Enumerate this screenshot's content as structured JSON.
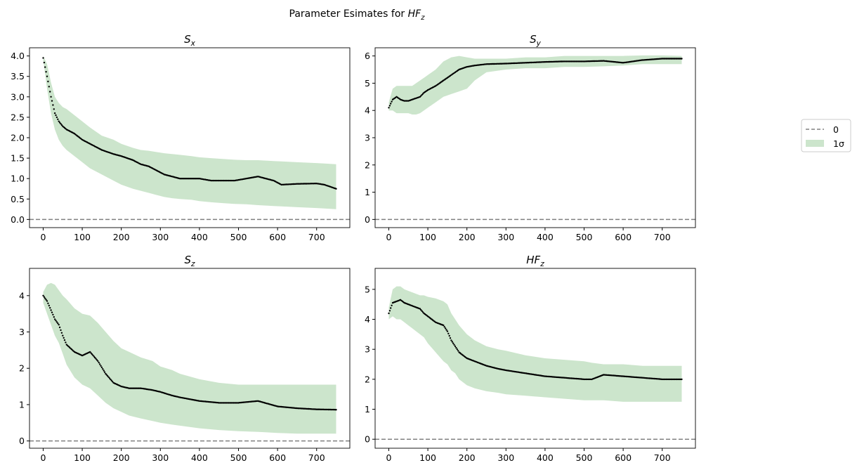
{
  "figure": {
    "suptitle_prefix": "Parameter Esimates for ",
    "suptitle_math": "HF",
    "suptitle_sub": "z"
  },
  "legend": {
    "items": [
      {
        "label": "0",
        "type": "dashed-line",
        "color": "#808080"
      },
      {
        "label": "1σ",
        "type": "band",
        "color": "#cce5cc"
      }
    ],
    "placement": "right, outside axes, vertically centered"
  },
  "colors": {
    "points": "#000000",
    "band": "#cce5cc",
    "zero_line": "#808080"
  },
  "chart_data": [
    {
      "type": "scatter",
      "title_main": "S",
      "title_sub": "x",
      "xlim": [
        -35,
        785
      ],
      "ylim": [
        -0.2,
        4.2
      ],
      "xticks": [
        0,
        100,
        200,
        300,
        400,
        500,
        600,
        700
      ],
      "yticks": [
        0.0,
        0.5,
        1.0,
        1.5,
        2.0,
        2.5,
        3.0,
        3.5,
        4.0
      ],
      "ytick_labels": [
        "0.0",
        "0.5",
        "1.0",
        "1.5",
        "2.0",
        "2.5",
        "3.0",
        "3.5",
        "4.0"
      ],
      "zero_line": 0,
      "x": [
        0,
        10,
        20,
        30,
        40,
        50,
        60,
        80,
        100,
        120,
        150,
        180,
        200,
        230,
        250,
        270,
        290,
        310,
        330,
        350,
        380,
        400,
        430,
        460,
        490,
        520,
        550,
        570,
        590,
        610,
        650,
        700,
        720,
        750
      ],
      "estimate": [
        3.95,
        3.5,
        3.0,
        2.6,
        2.4,
        2.28,
        2.2,
        2.1,
        1.95,
        1.85,
        1.7,
        1.6,
        1.55,
        1.45,
        1.35,
        1.3,
        1.2,
        1.1,
        1.05,
        1.0,
        1.0,
        1.0,
        0.95,
        0.95,
        0.95,
        1.0,
        1.05,
        1.0,
        0.95,
        0.85,
        0.87,
        0.88,
        0.85,
        0.75
      ],
      "lower": [
        3.9,
        3.2,
        2.6,
        2.2,
        1.95,
        1.8,
        1.7,
        1.55,
        1.4,
        1.25,
        1.1,
        0.95,
        0.85,
        0.75,
        0.7,
        0.65,
        0.6,
        0.55,
        0.52,
        0.5,
        0.48,
        0.45,
        0.42,
        0.4,
        0.38,
        0.37,
        0.35,
        0.34,
        0.33,
        0.32,
        0.3,
        0.28,
        0.27,
        0.25
      ],
      "upper": [
        4.0,
        3.8,
        3.35,
        3.0,
        2.85,
        2.75,
        2.7,
        2.55,
        2.4,
        2.25,
        2.05,
        1.95,
        1.85,
        1.75,
        1.7,
        1.68,
        1.65,
        1.62,
        1.6,
        1.58,
        1.55,
        1.52,
        1.5,
        1.48,
        1.46,
        1.45,
        1.45,
        1.44,
        1.43,
        1.42,
        1.4,
        1.38,
        1.37,
        1.35
      ]
    },
    {
      "type": "scatter",
      "title_main": "S",
      "title_sub": "y",
      "xlim": [
        -35,
        785
      ],
      "ylim": [
        -0.3,
        6.3
      ],
      "xticks": [
        0,
        100,
        200,
        300,
        400,
        500,
        600,
        700
      ],
      "yticks": [
        0,
        1,
        2,
        3,
        4,
        5,
        6
      ],
      "ytick_labels": [
        "0",
        "1",
        "2",
        "3",
        "4",
        "5",
        "6"
      ],
      "zero_line": 0,
      "x": [
        0,
        10,
        20,
        30,
        40,
        50,
        60,
        70,
        80,
        90,
        100,
        120,
        140,
        160,
        180,
        200,
        220,
        250,
        300,
        350,
        400,
        450,
        500,
        550,
        600,
        650,
        700,
        750
      ],
      "estimate": [
        4.1,
        4.4,
        4.5,
        4.4,
        4.35,
        4.35,
        4.4,
        4.45,
        4.5,
        4.65,
        4.75,
        4.9,
        5.1,
        5.3,
        5.5,
        5.6,
        5.65,
        5.7,
        5.72,
        5.75,
        5.78,
        5.8,
        5.8,
        5.82,
        5.75,
        5.85,
        5.9,
        5.9
      ],
      "lower": [
        4.0,
        4.0,
        3.9,
        3.9,
        3.9,
        3.9,
        3.85,
        3.85,
        3.9,
        4.0,
        4.1,
        4.3,
        4.5,
        4.6,
        4.7,
        4.8,
        5.1,
        5.4,
        5.5,
        5.55,
        5.55,
        5.6,
        5.6,
        5.62,
        5.65,
        5.7,
        5.7,
        5.7
      ],
      "upper": [
        4.3,
        4.8,
        4.9,
        4.9,
        4.9,
        4.9,
        4.9,
        5.0,
        5.1,
        5.2,
        5.3,
        5.5,
        5.8,
        5.95,
        6.0,
        5.95,
        5.9,
        5.9,
        5.9,
        5.95,
        5.95,
        6.0,
        6.0,
        6.0,
        6.0,
        6.02,
        6.02,
        6.0
      ]
    },
    {
      "type": "scatter",
      "title_main": "S",
      "title_sub": "z",
      "xlim": [
        -35,
        785
      ],
      "ylim": [
        -0.2,
        4.75
      ],
      "xticks": [
        0,
        100,
        200,
        300,
        400,
        500,
        600,
        700
      ],
      "yticks": [
        0,
        1,
        2,
        3,
        4
      ],
      "ytick_labels": [
        "0",
        "1",
        "2",
        "3",
        "4"
      ],
      "zero_line": 0,
      "x": [
        0,
        10,
        20,
        30,
        40,
        50,
        60,
        80,
        100,
        120,
        140,
        160,
        180,
        200,
        220,
        250,
        280,
        300,
        330,
        350,
        400,
        450,
        500,
        550,
        600,
        650,
        700,
        750
      ],
      "estimate": [
        4.0,
        3.85,
        3.6,
        3.35,
        3.2,
        2.9,
        2.65,
        2.45,
        2.35,
        2.45,
        2.2,
        1.85,
        1.6,
        1.5,
        1.45,
        1.45,
        1.4,
        1.35,
        1.25,
        1.2,
        1.1,
        1.05,
        1.05,
        1.1,
        0.95,
        0.9,
        0.87,
        0.86
      ],
      "lower": [
        3.8,
        3.5,
        3.2,
        2.9,
        2.7,
        2.4,
        2.1,
        1.75,
        1.55,
        1.45,
        1.25,
        1.05,
        0.9,
        0.8,
        0.7,
        0.62,
        0.55,
        0.5,
        0.45,
        0.42,
        0.35,
        0.3,
        0.27,
        0.25,
        0.22,
        0.2,
        0.2,
        0.2
      ],
      "upper": [
        4.1,
        4.3,
        4.35,
        4.3,
        4.15,
        4.0,
        3.9,
        3.65,
        3.5,
        3.45,
        3.25,
        3.0,
        2.75,
        2.55,
        2.45,
        2.3,
        2.2,
        2.05,
        1.95,
        1.85,
        1.7,
        1.6,
        1.55,
        1.55,
        1.55,
        1.55,
        1.55,
        1.55
      ]
    },
    {
      "type": "scatter",
      "title_main": "HF",
      "title_sub": "z",
      "xlim": [
        -35,
        785
      ],
      "ylim": [
        -0.3,
        5.7
      ],
      "xticks": [
        0,
        100,
        200,
        300,
        400,
        500,
        600,
        700
      ],
      "yticks": [
        0,
        1,
        2,
        3,
        4,
        5
      ],
      "ytick_labels": [
        "0",
        "1",
        "2",
        "3",
        "4",
        "5"
      ],
      "zero_line": 0,
      "x": [
        0,
        10,
        20,
        30,
        40,
        50,
        60,
        70,
        80,
        90,
        100,
        120,
        140,
        150,
        160,
        170,
        180,
        200,
        220,
        250,
        280,
        300,
        350,
        400,
        450,
        500,
        520,
        550,
        600,
        650,
        700,
        750
      ],
      "estimate": [
        4.2,
        4.55,
        4.6,
        4.65,
        4.55,
        4.5,
        4.45,
        4.4,
        4.35,
        4.2,
        4.1,
        3.9,
        3.8,
        3.6,
        3.3,
        3.1,
        2.9,
        2.7,
        2.6,
        2.45,
        2.35,
        2.3,
        2.2,
        2.1,
        2.05,
        2.0,
        2.0,
        2.15,
        2.1,
        2.05,
        2.0,
        2.0
      ],
      "lower": [
        4.0,
        4.1,
        4.0,
        4.0,
        3.9,
        3.8,
        3.7,
        3.6,
        3.5,
        3.4,
        3.2,
        2.9,
        2.6,
        2.5,
        2.3,
        2.2,
        2.0,
        1.8,
        1.7,
        1.6,
        1.55,
        1.5,
        1.45,
        1.4,
        1.35,
        1.3,
        1.3,
        1.3,
        1.25,
        1.25,
        1.25,
        1.25
      ],
      "upper": [
        4.4,
        5.0,
        5.1,
        5.1,
        5.0,
        4.95,
        4.9,
        4.85,
        4.8,
        4.8,
        4.75,
        4.7,
        4.6,
        4.5,
        4.2,
        4.0,
        3.8,
        3.5,
        3.3,
        3.1,
        3.0,
        2.95,
        2.8,
        2.7,
        2.65,
        2.6,
        2.55,
        2.5,
        2.5,
        2.45,
        2.45,
        2.45
      ]
    }
  ]
}
